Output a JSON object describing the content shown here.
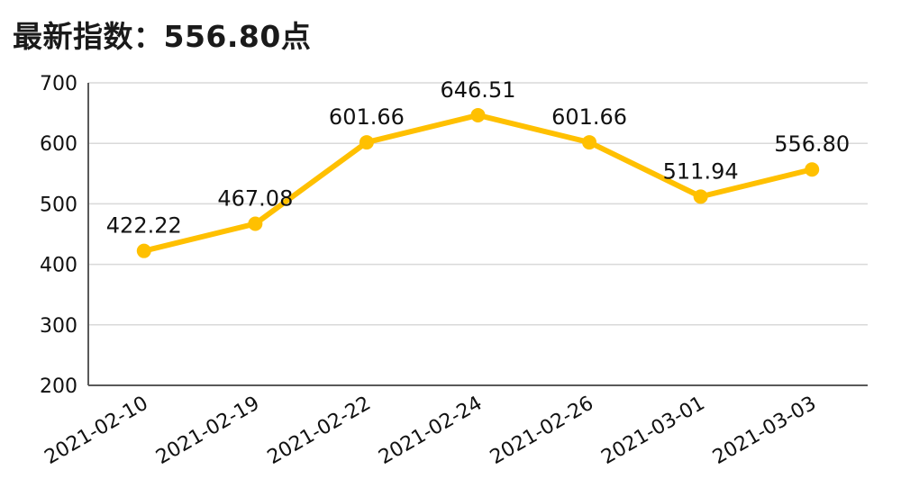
{
  "header": {
    "title": "最新指数：556.80点"
  },
  "colors": {
    "line": "#FFC000",
    "grid": "#d9d9d9",
    "axis": "#595959",
    "text": "#111111"
  },
  "chart_data": {
    "type": "line",
    "title": "最新指数：556.80点",
    "xlabel": "",
    "ylabel": "",
    "categories": [
      "2021-02-10",
      "2021-02-19",
      "2021-02-22",
      "2021-02-24",
      "2021-02-26",
      "2021-03-01",
      "2021-03-03"
    ],
    "series": [
      {
        "values": [
          422.22,
          467.08,
          601.66,
          646.51,
          601.66,
          511.94,
          556.8
        ],
        "data_labels": [
          "422.22",
          "467.08",
          "601.66",
          "646.51",
          "601.66",
          "511.94",
          "556.80"
        ]
      }
    ],
    "ylim": [
      200,
      700
    ],
    "yticks": [
      "200",
      "300",
      "400",
      "500",
      "600",
      "700"
    ],
    "grid": true,
    "legend": "none"
  }
}
